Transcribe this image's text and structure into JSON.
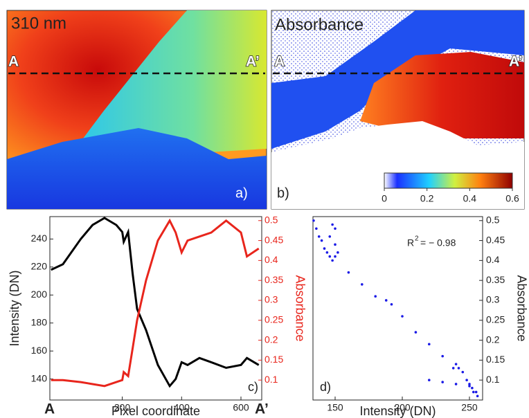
{
  "chart_data": [
    {
      "type": "image",
      "label": "310 nm",
      "start": "A",
      "end": "A’",
      "panel": "a)"
    },
    {
      "type": "image",
      "label": "Absorbance",
      "start": "A",
      "end": "A’",
      "panel": "b)",
      "colorbar": {
        "clim": [
          0,
          0.6
        ],
        "ticks": [
          0,
          0.2,
          0.4,
          0.6
        ]
      }
    },
    {
      "type": "line",
      "xlabel": "Pixel coordinate",
      "ylabel": "Intensity (DN)",
      "y2label": "Absorbance",
      "start": "A",
      "end": "A’",
      "panel": "c)",
      "xlim": [
        -44,
        670
      ],
      "xticks": [
        200,
        400,
        600
      ],
      "ylim": [
        125,
        256
      ],
      "yticks": [
        140,
        160,
        180,
        200,
        220,
        240
      ],
      "y2lim": [
        0.05,
        0.51
      ],
      "y2ticks": [
        0.1,
        0.15,
        0.2,
        0.25,
        0.3,
        0.35,
        0.4,
        0.45,
        0.5
      ],
      "x": [
        -40,
        0,
        60,
        100,
        140,
        180,
        200,
        205,
        220,
        235,
        250,
        280,
        320,
        360,
        380,
        400,
        420,
        460,
        500,
        550,
        600,
        620,
        660
      ],
      "series": [
        {
          "color": "#000000",
          "values": [
            218,
            222,
            240,
            250,
            255,
            250,
            245,
            238,
            245,
            215,
            190,
            175,
            150,
            135,
            140,
            152,
            150,
            155,
            152,
            148,
            150,
            155,
            150
          ]
        },
        {
          "color": "#e8251c",
          "axis": "y2",
          "values": [
            0.1,
            0.1,
            0.095,
            0.09,
            0.085,
            0.095,
            0.1,
            0.12,
            0.11,
            0.18,
            0.25,
            0.35,
            0.45,
            0.5,
            0.47,
            0.42,
            0.45,
            0.46,
            0.47,
            0.5,
            0.47,
            0.41,
            0.43
          ]
        }
      ]
    },
    {
      "type": "scatter",
      "xlabel": "Intensity (DN)",
      "ylabel": "Absorbance",
      "panel": "d)",
      "annotation": {
        "base": "R",
        "sup": "2",
        "text": "= − 0.98"
      },
      "color": "#1a1ae6",
      "xlim": [
        133.5,
        259.8
      ],
      "xticks": [
        150,
        200,
        250
      ],
      "ylim": [
        0.05,
        0.51
      ],
      "yticks": [
        0.1,
        0.15,
        0.2,
        0.25,
        0.3,
        0.35,
        0.4,
        0.45,
        0.5
      ],
      "x": [
        134,
        136,
        138,
        140,
        142,
        144,
        146,
        148,
        150,
        152,
        150,
        148,
        146,
        150,
        160,
        170,
        180,
        188,
        192,
        200,
        210,
        220,
        230,
        238,
        240,
        242,
        245,
        248,
        250,
        252,
        255,
        256,
        220,
        230,
        240,
        250,
        253
      ],
      "values": [
        0.5,
        0.48,
        0.46,
        0.45,
        0.43,
        0.42,
        0.41,
        0.4,
        0.41,
        0.42,
        0.48,
        0.49,
        0.46,
        0.44,
        0.37,
        0.34,
        0.31,
        0.3,
        0.29,
        0.26,
        0.22,
        0.19,
        0.16,
        0.13,
        0.14,
        0.13,
        0.12,
        0.1,
        0.09,
        0.08,
        0.07,
        0.06,
        0.1,
        0.095,
        0.09,
        0.085,
        0.07
      ]
    }
  ]
}
